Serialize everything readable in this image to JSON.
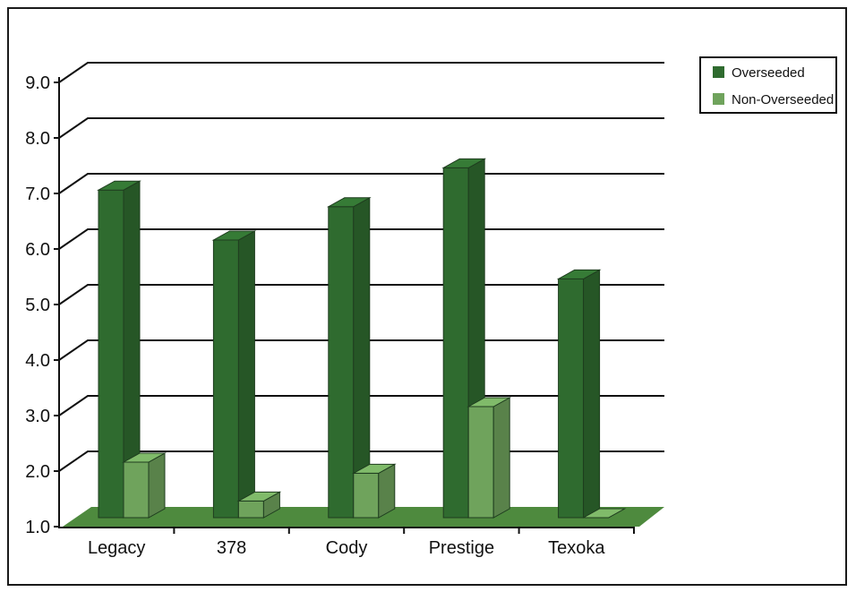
{
  "chart_data": {
    "type": "bar",
    "categories": [
      "Legacy",
      "378",
      "Cody",
      "Prestige",
      "Texoka"
    ],
    "series": [
      {
        "name": "Overseeded",
        "values": [
          6.9,
          6.0,
          6.6,
          7.3,
          5.3
        ],
        "color": "#2f6b2f"
      },
      {
        "name": "Non-Overseeded",
        "values": [
          2.0,
          1.3,
          1.8,
          3.0,
          1.0
        ],
        "color": "#6fa35c"
      }
    ],
    "yticks": [
      "1.0",
      "2.0",
      "3.0",
      "4.0",
      "5.0",
      "6.0",
      "7.0",
      "8.0",
      "9.0"
    ],
    "ylim": [
      1.0,
      9.0
    ],
    "grid": true,
    "legend_position": "top-right",
    "floor_color": "#4e8a3e"
  }
}
